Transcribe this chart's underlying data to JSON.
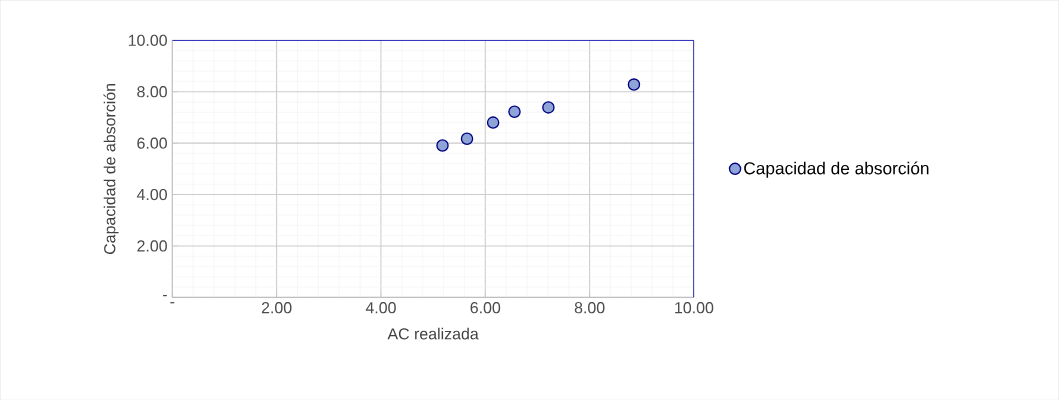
{
  "chart_data": {
    "type": "scatter",
    "xlabel": "AC realizada",
    "ylabel": "Capacidad de absorción",
    "x": [
      5.18,
      5.65,
      6.15,
      6.56,
      7.21,
      8.85
    ],
    "series": [
      {
        "name": "Capacidad de absorción",
        "color": "#8ea3d6",
        "values": [
          5.91,
          6.17,
          6.8,
          7.22,
          7.39,
          8.28
        ]
      }
    ],
    "xlim": [
      0,
      10
    ],
    "ylim": [
      0,
      10
    ],
    "xticks": [
      {
        "value": 0,
        "label": "-"
      },
      {
        "value": 2,
        "label": "2.00"
      },
      {
        "value": 4,
        "label": "4.00"
      },
      {
        "value": 6,
        "label": "6.00"
      },
      {
        "value": 8,
        "label": "8.00"
      },
      {
        "value": 10,
        "label": "10.00"
      }
    ],
    "yticks": [
      {
        "value": 0,
        "label": "-"
      },
      {
        "value": 2,
        "label": "2.00"
      },
      {
        "value": 4,
        "label": "4.00"
      },
      {
        "value": 6,
        "label": "6.00"
      },
      {
        "value": 8,
        "label": "8.00"
      },
      {
        "value": 10,
        "label": "10.00"
      }
    ],
    "grid": true,
    "legend": "right",
    "marker": "circle"
  }
}
